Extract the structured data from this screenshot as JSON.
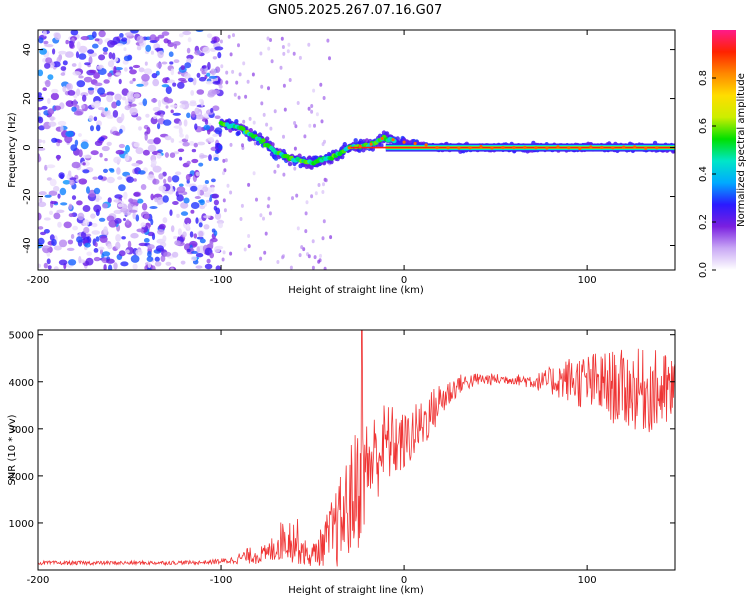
{
  "title": "GN05.2025.267.07.16.G07",
  "chart_data": [
    {
      "type": "heatmap",
      "name": "spectrogram",
      "xlabel": "Height of straight line (km)",
      "ylabel": "Frequency (Hz)",
      "xlim": [
        -200,
        148
      ],
      "ylim": [
        -50,
        48
      ],
      "x_ticks": [
        "-200",
        "-100",
        "0",
        "100"
      ],
      "y_ticks": [
        "40",
        "20",
        "0",
        "-20",
        "-40"
      ],
      "noise_region": {
        "x_range": [
          -200,
          -100
        ],
        "freq_range": [
          -50,
          48
        ],
        "level": "low 0.1-0.4"
      },
      "tone_trace": [
        {
          "x": -100,
          "freq": 10
        },
        {
          "x": -90,
          "freq": 8
        },
        {
          "x": -80,
          "freq": 4
        },
        {
          "x": -70,
          "freq": -2
        },
        {
          "x": -60,
          "freq": -5
        },
        {
          "x": -50,
          "freq": -6
        },
        {
          "x": -40,
          "freq": -4
        },
        {
          "x": -30,
          "freq": 0
        },
        {
          "x": -20,
          "freq": 1
        },
        {
          "x": -10,
          "freq": 4
        },
        {
          "x": 0,
          "freq": 2
        },
        {
          "x": 10,
          "freq": 1
        },
        {
          "x": 20,
          "freq": 0
        },
        {
          "x": 148,
          "freq": 0
        }
      ],
      "peak_line": {
        "x_range": [
          -10,
          148
        ],
        "freq": 0,
        "amplitude": 1.0
      },
      "colorbar": {
        "label": "Normalized spectral amplitude",
        "range": [
          0,
          1
        ],
        "ticks": [
          "0.0",
          "0.2",
          "0.4",
          "0.6",
          "0.8"
        ],
        "colors": [
          "#ffffff",
          "#c9a8f5",
          "#7a1fe0",
          "#2a1aff",
          "#00aaff",
          "#00e6c8",
          "#00e000",
          "#ccee00",
          "#ffdd00",
          "#ff8800",
          "#ff2200",
          "#ff1a8a"
        ]
      }
    },
    {
      "type": "line",
      "name": "snr",
      "xlabel": "Height of straight line (km)",
      "ylabel": "SNR (10 * v/v)",
      "xlim": [
        -200,
        148
      ],
      "ylim": [
        0,
        5100
      ],
      "x_ticks": [
        "-200",
        "-100",
        "0",
        "100"
      ],
      "y_ticks": [
        "5000",
        "4000",
        "3000",
        "2000",
        "1000"
      ],
      "color": "#ef3535",
      "envelope": [
        {
          "x": -200,
          "mean": 150,
          "spread": 60
        },
        {
          "x": -150,
          "mean": 150,
          "spread": 60
        },
        {
          "x": -110,
          "mean": 160,
          "spread": 60
        },
        {
          "x": -95,
          "mean": 200,
          "spread": 100
        },
        {
          "x": -85,
          "mean": 300,
          "spread": 250
        },
        {
          "x": -75,
          "mean": 330,
          "spread": 300
        },
        {
          "x": -65,
          "mean": 700,
          "spread": 700
        },
        {
          "x": -58,
          "mean": 600,
          "spread": 700
        },
        {
          "x": -52,
          "mean": 250,
          "spread": 250
        },
        {
          "x": -45,
          "mean": 500,
          "spread": 600
        },
        {
          "x": -35,
          "mean": 1000,
          "spread": 1400
        },
        {
          "x": -25,
          "mean": 1800,
          "spread": 2000
        },
        {
          "x": -20,
          "mean": 2200,
          "spread": 1500
        },
        {
          "x": -10,
          "mean": 2700,
          "spread": 1300
        },
        {
          "x": 0,
          "mean": 2700,
          "spread": 900
        },
        {
          "x": 10,
          "mean": 3100,
          "spread": 800
        },
        {
          "x": 20,
          "mean": 3600,
          "spread": 600
        },
        {
          "x": 30,
          "mean": 3950,
          "spread": 300
        },
        {
          "x": 40,
          "mean": 4050,
          "spread": 200
        },
        {
          "x": 60,
          "mean": 4050,
          "spread": 150
        },
        {
          "x": 75,
          "mean": 4000,
          "spread": 300
        },
        {
          "x": 90,
          "mean": 4050,
          "spread": 700
        },
        {
          "x": 105,
          "mean": 3950,
          "spread": 1000
        },
        {
          "x": 120,
          "mean": 3850,
          "spread": 1200
        },
        {
          "x": 135,
          "mean": 3800,
          "spread": 1300
        },
        {
          "x": 148,
          "mean": 3750,
          "spread": 1200
        }
      ],
      "spike": {
        "x": -23,
        "y": 5100
      }
    }
  ]
}
